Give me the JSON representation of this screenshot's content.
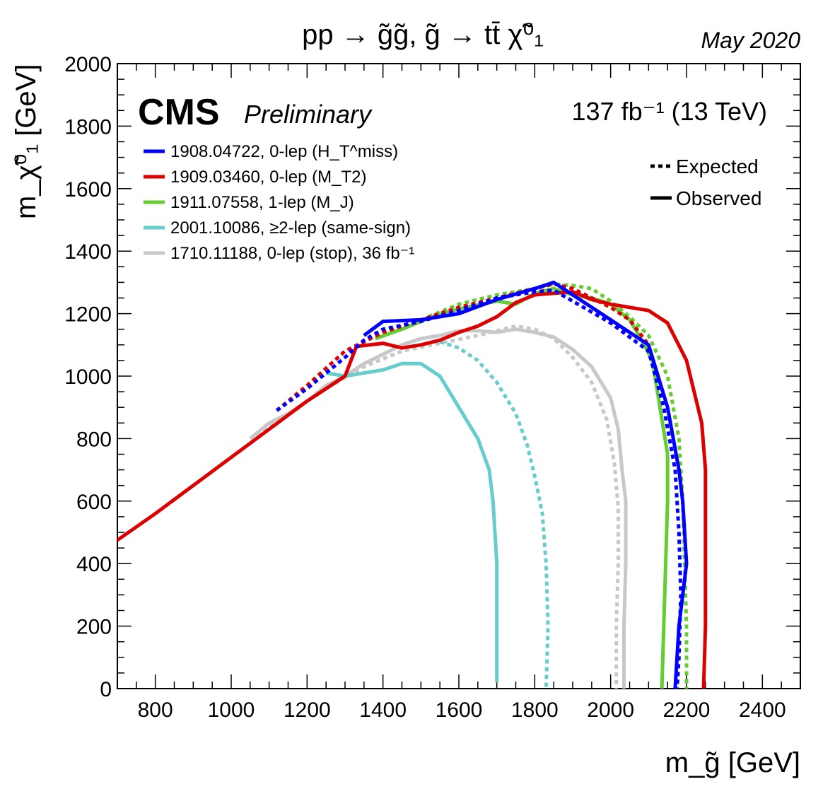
{
  "chart_data": {
    "type": "line",
    "title": "pp → g̃g̃,  g̃ → tt̄ χ̃⁰₁",
    "date": "May 2020",
    "experiment": "CMS",
    "status": "Preliminary",
    "lumi": "137 fb⁻¹ (13 TeV)",
    "xlabel": "m_g̃ [GeV]",
    "ylabel": "m_χ̃⁰₁ [GeV]",
    "xlim": [
      700,
      2500
    ],
    "ylim": [
      0,
      2000
    ],
    "xticks": [
      800,
      1000,
      1200,
      1400,
      1600,
      1800,
      2000,
      2200,
      2400
    ],
    "yticks": [
      0,
      200,
      400,
      600,
      800,
      1000,
      1200,
      1400,
      1600,
      1800,
      2000
    ],
    "style_legend": [
      {
        "label": "Expected",
        "style": "dotted"
      },
      {
        "label": "Observed",
        "style": "solid"
      }
    ],
    "legend_position": "top-left",
    "series": [
      {
        "name": "1908.04722, 0-lep (H_T^miss)",
        "color": "#0000ff",
        "observed": [
          [
            1350,
            1130
          ],
          [
            1400,
            1175
          ],
          [
            1500,
            1180
          ],
          [
            1600,
            1200
          ],
          [
            1700,
            1245
          ],
          [
            1800,
            1280
          ],
          [
            1850,
            1300
          ],
          [
            1900,
            1260
          ],
          [
            2000,
            1180
          ],
          [
            2100,
            1100
          ],
          [
            2150,
            900
          ],
          [
            2180,
            700
          ],
          [
            2190,
            600
          ],
          [
            2200,
            400
          ],
          [
            2180,
            200
          ],
          [
            2170,
            0
          ]
        ],
        "expected": [
          [
            1120,
            890
          ],
          [
            1200,
            960
          ],
          [
            1300,
            1060
          ],
          [
            1350,
            1115
          ],
          [
            1400,
            1150
          ],
          [
            1500,
            1175
          ],
          [
            1600,
            1210
          ],
          [
            1700,
            1250
          ],
          [
            1800,
            1270
          ],
          [
            1850,
            1275
          ],
          [
            1900,
            1240
          ],
          [
            2000,
            1170
          ],
          [
            2100,
            1080
          ],
          [
            2140,
            900
          ],
          [
            2170,
            700
          ],
          [
            2180,
            500
          ],
          [
            2185,
            300
          ],
          [
            2180,
            100
          ],
          [
            2175,
            0
          ]
        ]
      },
      {
        "name": "1909.03460, 0-lep (M_T2)",
        "color": "#dd0000",
        "observed": [
          [
            700,
            475
          ],
          [
            800,
            560
          ],
          [
            900,
            650
          ],
          [
            1000,
            740
          ],
          [
            1100,
            830
          ],
          [
            1200,
            920
          ],
          [
            1300,
            1000
          ],
          [
            1330,
            1095
          ],
          [
            1400,
            1105
          ],
          [
            1450,
            1090
          ],
          [
            1500,
            1100
          ],
          [
            1550,
            1115
          ],
          [
            1600,
            1140
          ],
          [
            1650,
            1160
          ],
          [
            1700,
            1190
          ],
          [
            1750,
            1235
          ],
          [
            1800,
            1260
          ],
          [
            1850,
            1265
          ],
          [
            1900,
            1270
          ],
          [
            1950,
            1245
          ],
          [
            2000,
            1230
          ],
          [
            2050,
            1220
          ],
          [
            2100,
            1210
          ],
          [
            2150,
            1170
          ],
          [
            2200,
            1050
          ],
          [
            2240,
            850
          ],
          [
            2250,
            700
          ],
          [
            2250,
            400
          ],
          [
            2250,
            200
          ],
          [
            2245,
            0
          ]
        ],
        "expected": [
          [
            1120,
            890
          ],
          [
            1200,
            970
          ],
          [
            1300,
            1080
          ],
          [
            1400,
            1140
          ],
          [
            1500,
            1180
          ],
          [
            1600,
            1220
          ],
          [
            1700,
            1250
          ],
          [
            1800,
            1280
          ],
          [
            1850,
            1295
          ],
          [
            1900,
            1280
          ],
          [
            1950,
            1250
          ],
          [
            2000,
            1220
          ],
          [
            2050,
            1180
          ],
          [
            2100,
            1100
          ]
        ]
      },
      {
        "name": "1911.07558, 1-lep (M_J)",
        "color": "#66cc33",
        "observed": [
          [
            1380,
            1120
          ],
          [
            1450,
            1150
          ],
          [
            1520,
            1185
          ],
          [
            1600,
            1215
          ],
          [
            1700,
            1240
          ],
          [
            1750,
            1230
          ],
          [
            1800,
            1265
          ],
          [
            1850,
            1280
          ],
          [
            1900,
            1260
          ],
          [
            1950,
            1250
          ],
          [
            2000,
            1230
          ],
          [
            2050,
            1180
          ],
          [
            2080,
            1120
          ],
          [
            2110,
            1050
          ],
          [
            2130,
            900
          ],
          [
            2150,
            750
          ],
          [
            2150,
            600
          ],
          [
            2145,
            400
          ],
          [
            2140,
            200
          ],
          [
            2135,
            0
          ]
        ],
        "expected": [
          [
            1520,
            1190
          ],
          [
            1600,
            1230
          ],
          [
            1700,
            1260
          ],
          [
            1800,
            1280
          ],
          [
            1850,
            1295
          ],
          [
            1900,
            1290
          ],
          [
            1950,
            1280
          ],
          [
            2000,
            1240
          ],
          [
            2050,
            1190
          ],
          [
            2100,
            1130
          ],
          [
            2150,
            1000
          ],
          [
            2180,
            800
          ],
          [
            2190,
            600
          ],
          [
            2195,
            400
          ],
          [
            2200,
            200
          ],
          [
            2200,
            0
          ]
        ]
      },
      {
        "name": "2001.10086, ≥2-lep (same-sign)",
        "color": "#66cccc",
        "observed": [
          [
            1250,
            1010
          ],
          [
            1300,
            1000
          ],
          [
            1350,
            1010
          ],
          [
            1400,
            1020
          ],
          [
            1450,
            1040
          ],
          [
            1500,
            1040
          ],
          [
            1550,
            1000
          ],
          [
            1600,
            900
          ],
          [
            1650,
            800
          ],
          [
            1680,
            700
          ],
          [
            1690,
            600
          ],
          [
            1700,
            400
          ],
          [
            1700,
            200
          ],
          [
            1700,
            20
          ]
        ],
        "expected": [
          [
            1550,
            1110
          ],
          [
            1600,
            1090
          ],
          [
            1650,
            1050
          ],
          [
            1700,
            980
          ],
          [
            1750,
            880
          ],
          [
            1780,
            780
          ],
          [
            1800,
            680
          ],
          [
            1820,
            560
          ],
          [
            1830,
            400
          ],
          [
            1835,
            200
          ],
          [
            1830,
            0
          ]
        ]
      },
      {
        "name": "1710.11188, 0-lep (stop), 36 fb⁻¹",
        "color": "#c8c8c8",
        "observed": [
          [
            1050,
            800
          ],
          [
            1100,
            850
          ],
          [
            1150,
            880
          ],
          [
            1200,
            920
          ],
          [
            1250,
            970
          ],
          [
            1300,
            1000
          ],
          [
            1350,
            1040
          ],
          [
            1400,
            1070
          ],
          [
            1450,
            1100
          ],
          [
            1500,
            1120
          ],
          [
            1550,
            1130
          ],
          [
            1600,
            1145
          ],
          [
            1650,
            1145
          ],
          [
            1700,
            1140
          ],
          [
            1750,
            1150
          ],
          [
            1800,
            1140
          ],
          [
            1850,
            1125
          ],
          [
            1900,
            1085
          ],
          [
            1950,
            1030
          ],
          [
            2000,
            930
          ],
          [
            2020,
            830
          ],
          [
            2030,
            700
          ],
          [
            2040,
            600
          ],
          [
            2040,
            400
          ],
          [
            2035,
            200
          ],
          [
            2035,
            0
          ]
        ],
        "expected": [
          [
            1050,
            800
          ],
          [
            1150,
            880
          ],
          [
            1250,
            960
          ],
          [
            1350,
            1030
          ],
          [
            1450,
            1080
          ],
          [
            1550,
            1105
          ],
          [
            1650,
            1130
          ],
          [
            1750,
            1160
          ],
          [
            1800,
            1150
          ],
          [
            1850,
            1120
          ],
          [
            1900,
            1060
          ],
          [
            1950,
            980
          ],
          [
            1990,
            860
          ],
          [
            2010,
            720
          ],
          [
            2020,
            580
          ],
          [
            2020,
            400
          ],
          [
            2015,
            200
          ],
          [
            2015,
            0
          ]
        ]
      }
    ]
  }
}
